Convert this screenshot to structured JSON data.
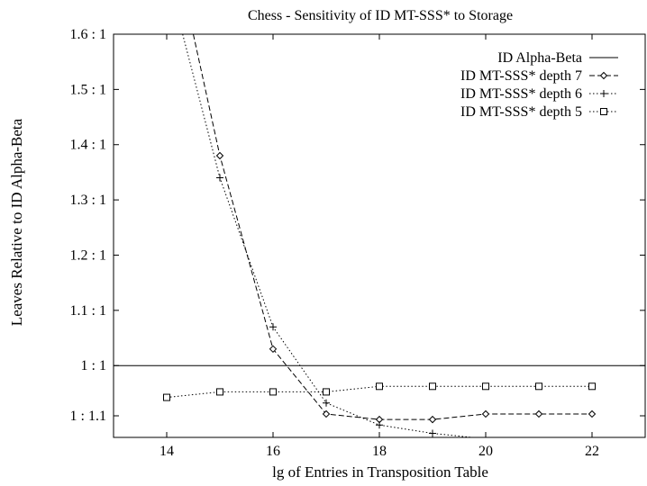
{
  "chart_data": {
    "type": "line",
    "title": "Chess - Sensitivity of ID MT-SSS* to Storage",
    "xlabel": "lg of Entries in Transposition Table",
    "ylabel": "Leaves Relative to ID Alpha-Beta",
    "xlim": [
      13,
      23
    ],
    "ylim": [
      0.87,
      1.6
    ],
    "x_ticks": [
      14,
      16,
      18,
      20,
      22
    ],
    "y_ticks": [
      {
        "value": 1.6,
        "label": "1.6 : 1"
      },
      {
        "value": 1.5,
        "label": "1.5 : 1"
      },
      {
        "value": 1.4,
        "label": "1.4 : 1"
      },
      {
        "value": 1.3,
        "label": "1.3 : 1"
      },
      {
        "value": 1.2,
        "label": "1.2 : 1"
      },
      {
        "value": 1.1,
        "label": "1.1 : 1"
      },
      {
        "value": 1.0,
        "label": "1 : 1"
      },
      {
        "value": 0.9091,
        "label": "1 : 1.1"
      }
    ],
    "grid": false,
    "legend_position": "top-right",
    "series": [
      {
        "name": "ID Alpha-Beta",
        "style": "solid",
        "marker": "none",
        "x": [
          13,
          23
        ],
        "y": [
          1.0,
          1.0
        ]
      },
      {
        "name": "ID MT-SSS* depth 7",
        "style": "dashed",
        "marker": "diamond",
        "x": [
          14.5,
          15,
          16,
          17,
          18,
          19,
          20,
          21,
          22
        ],
        "y": [
          1.6,
          1.38,
          1.03,
          0.9124,
          0.9024,
          0.9024,
          0.9124,
          0.9124,
          0.9124
        ]
      },
      {
        "name": "ID MT-SSS* depth 6",
        "style": "dotted",
        "marker": "plus",
        "x": [
          14.3,
          15,
          16,
          17,
          18,
          19,
          20,
          21,
          22
        ],
        "y": [
          1.6,
          1.34,
          1.07,
          0.9324,
          0.8924,
          0.8774,
          0.8674,
          0.8674,
          0.8574
        ]
      },
      {
        "name": "ID MT-SSS* depth 5",
        "style": "dotted",
        "marker": "square",
        "x": [
          14,
          15,
          16,
          17,
          18,
          19,
          20,
          21,
          22
        ],
        "y": [
          0.9424,
          0.9524,
          0.9524,
          0.9524,
          0.9624,
          0.9624,
          0.9624,
          0.9624,
          0.9624
        ]
      }
    ]
  }
}
